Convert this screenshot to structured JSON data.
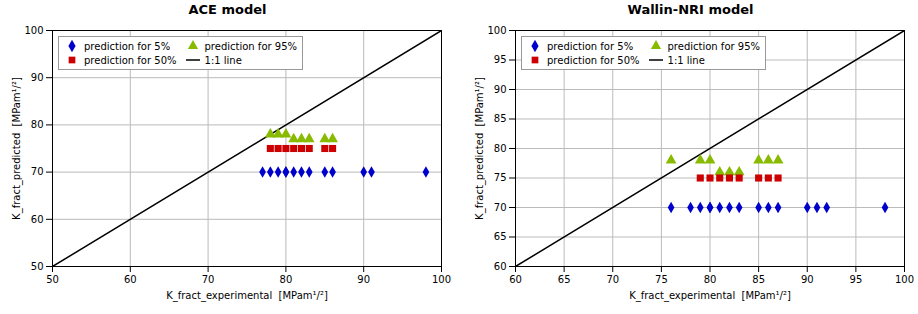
{
  "chart_data": [
    {
      "type": "scatter",
      "title": "ACE model",
      "xlabel": "K_fract_experimental  [MPam¹/²]",
      "ylabel": "K_fract_predicted  [MPam¹/²]",
      "xlim": [
        50,
        100
      ],
      "ylim": [
        50,
        100
      ],
      "xticks": [
        50,
        60,
        70,
        80,
        90,
        100
      ],
      "yticks": [
        50,
        60,
        70,
        80,
        90,
        100
      ],
      "grid": true,
      "legend": "upper left",
      "series": [
        {
          "name": "prediction for 5%",
          "color": "#0000CC",
          "marker": "diamond",
          "x": [
            77,
            78,
            79,
            80,
            80,
            81,
            82,
            83,
            85,
            86,
            90,
            91,
            98
          ],
          "values": [
            70,
            70,
            70,
            70,
            70,
            70,
            70,
            70,
            70,
            70,
            70,
            70,
            70
          ]
        },
        {
          "name": "prediction for 50%",
          "color": "#CC0000",
          "marker": "square",
          "x": [
            78,
            79,
            80,
            81,
            82,
            83,
            85,
            86
          ],
          "values": [
            75,
            75,
            75,
            75,
            75,
            75,
            75,
            75
          ]
        },
        {
          "name": "prediction for 95%",
          "color": "#88BB00",
          "marker": "triangle",
          "x": [
            78,
            79,
            80,
            81,
            82,
            83,
            85,
            86
          ],
          "values": [
            78,
            78,
            78,
            77,
            77,
            77,
            77,
            77
          ]
        },
        {
          "name": "1:1 line",
          "type": "line",
          "color": "#000000",
          "x": [
            50,
            100
          ],
          "values": [
            50,
            100
          ]
        }
      ]
    },
    {
      "type": "scatter",
      "title": "Wallin-NRI model",
      "xlabel": "K_fract_experimental  [MPam¹/²]",
      "ylabel": "K_fract_predicted  [MPam¹/²]",
      "xlim": [
        60,
        100
      ],
      "ylim": [
        60,
        100
      ],
      "xticks": [
        60,
        65,
        70,
        75,
        80,
        85,
        90,
        95,
        100
      ],
      "yticks": [
        60,
        65,
        70,
        75,
        80,
        85,
        90,
        95,
        100
      ],
      "grid": true,
      "legend": "upper left",
      "series": [
        {
          "name": "prediction for 5%",
          "color": "#0000CC",
          "marker": "diamond",
          "x": [
            76,
            78,
            79,
            80,
            80,
            81,
            82,
            83,
            85,
            86,
            87,
            90,
            91,
            92,
            98
          ],
          "values": [
            70,
            70,
            70,
            70,
            70,
            70,
            70,
            70,
            70,
            70,
            70,
            70,
            70,
            70,
            70
          ]
        },
        {
          "name": "prediction for 50%",
          "color": "#CC0000",
          "marker": "square",
          "x": [
            79,
            80,
            81,
            82,
            83,
            85,
            86,
            87
          ],
          "values": [
            75,
            75,
            75,
            75,
            75,
            75,
            75,
            75
          ]
        },
        {
          "name": "prediction for 95%",
          "color": "#88BB00",
          "marker": "triangle",
          "x": [
            76,
            79,
            80,
            81,
            82,
            83,
            85,
            86,
            87
          ],
          "values": [
            78,
            78,
            78,
            76,
            76,
            76,
            78,
            78,
            78
          ]
        },
        {
          "name": "1:1 line",
          "type": "line",
          "color": "#000000",
          "x": [
            60,
            100
          ],
          "values": [
            60,
            100
          ]
        }
      ]
    }
  ]
}
